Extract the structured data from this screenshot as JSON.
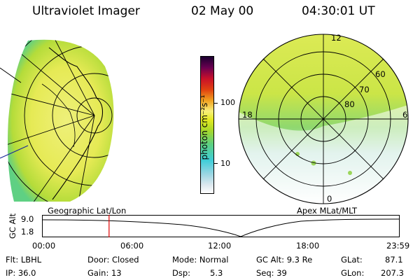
{
  "header": {
    "instrument": "Ultraviolet Imager",
    "date": "02 May 00",
    "time": "04:30:01 UT"
  },
  "colorbar": {
    "unit_label": "photon cm⁻²s⁻¹",
    "ticks": [
      "100",
      "10"
    ],
    "colors": [
      "#ffffff",
      "#dde8ee",
      "#9bd6e3",
      "#3fcdd8",
      "#5dd080",
      "#a8d82a",
      "#e4ea22",
      "#f8f07a",
      "#f0a020",
      "#e04010",
      "#c8102a",
      "#6a0050",
      "#1a0030"
    ]
  },
  "geo_panel": {
    "label": "Geographic Lat/Lon"
  },
  "polar_panel": {
    "label": "Apex MLat/MLT",
    "mlt_labels": {
      "top": "12",
      "left": "18",
      "right": "6",
      "bottom": "0"
    },
    "lat_labels": [
      "60",
      "70",
      "80"
    ]
  },
  "timeline": {
    "ylabel": "GC Alt",
    "values": [
      "9.0",
      "1.8"
    ],
    "ticks": [
      "00:00",
      "06:00",
      "12:00",
      "18:00",
      "23:59"
    ],
    "marker_fraction": 0.1875,
    "marker_color": "#e00000"
  },
  "status": {
    "flt": "Flt: LBHL",
    "ip": "IP: 36.0",
    "door": "Door: Closed",
    "gain": "Gain: 13",
    "mode": "Mode: Normal",
    "dsp_label": "Dsp:",
    "dsp_value": "5.3",
    "gcalt": "GC Alt: 9.3 Re",
    "seq": "Seq: 39",
    "glat_label": "GLat:",
    "glat_value": "87.1",
    "glon_label": "GLon:",
    "glon_value": "207.3"
  }
}
